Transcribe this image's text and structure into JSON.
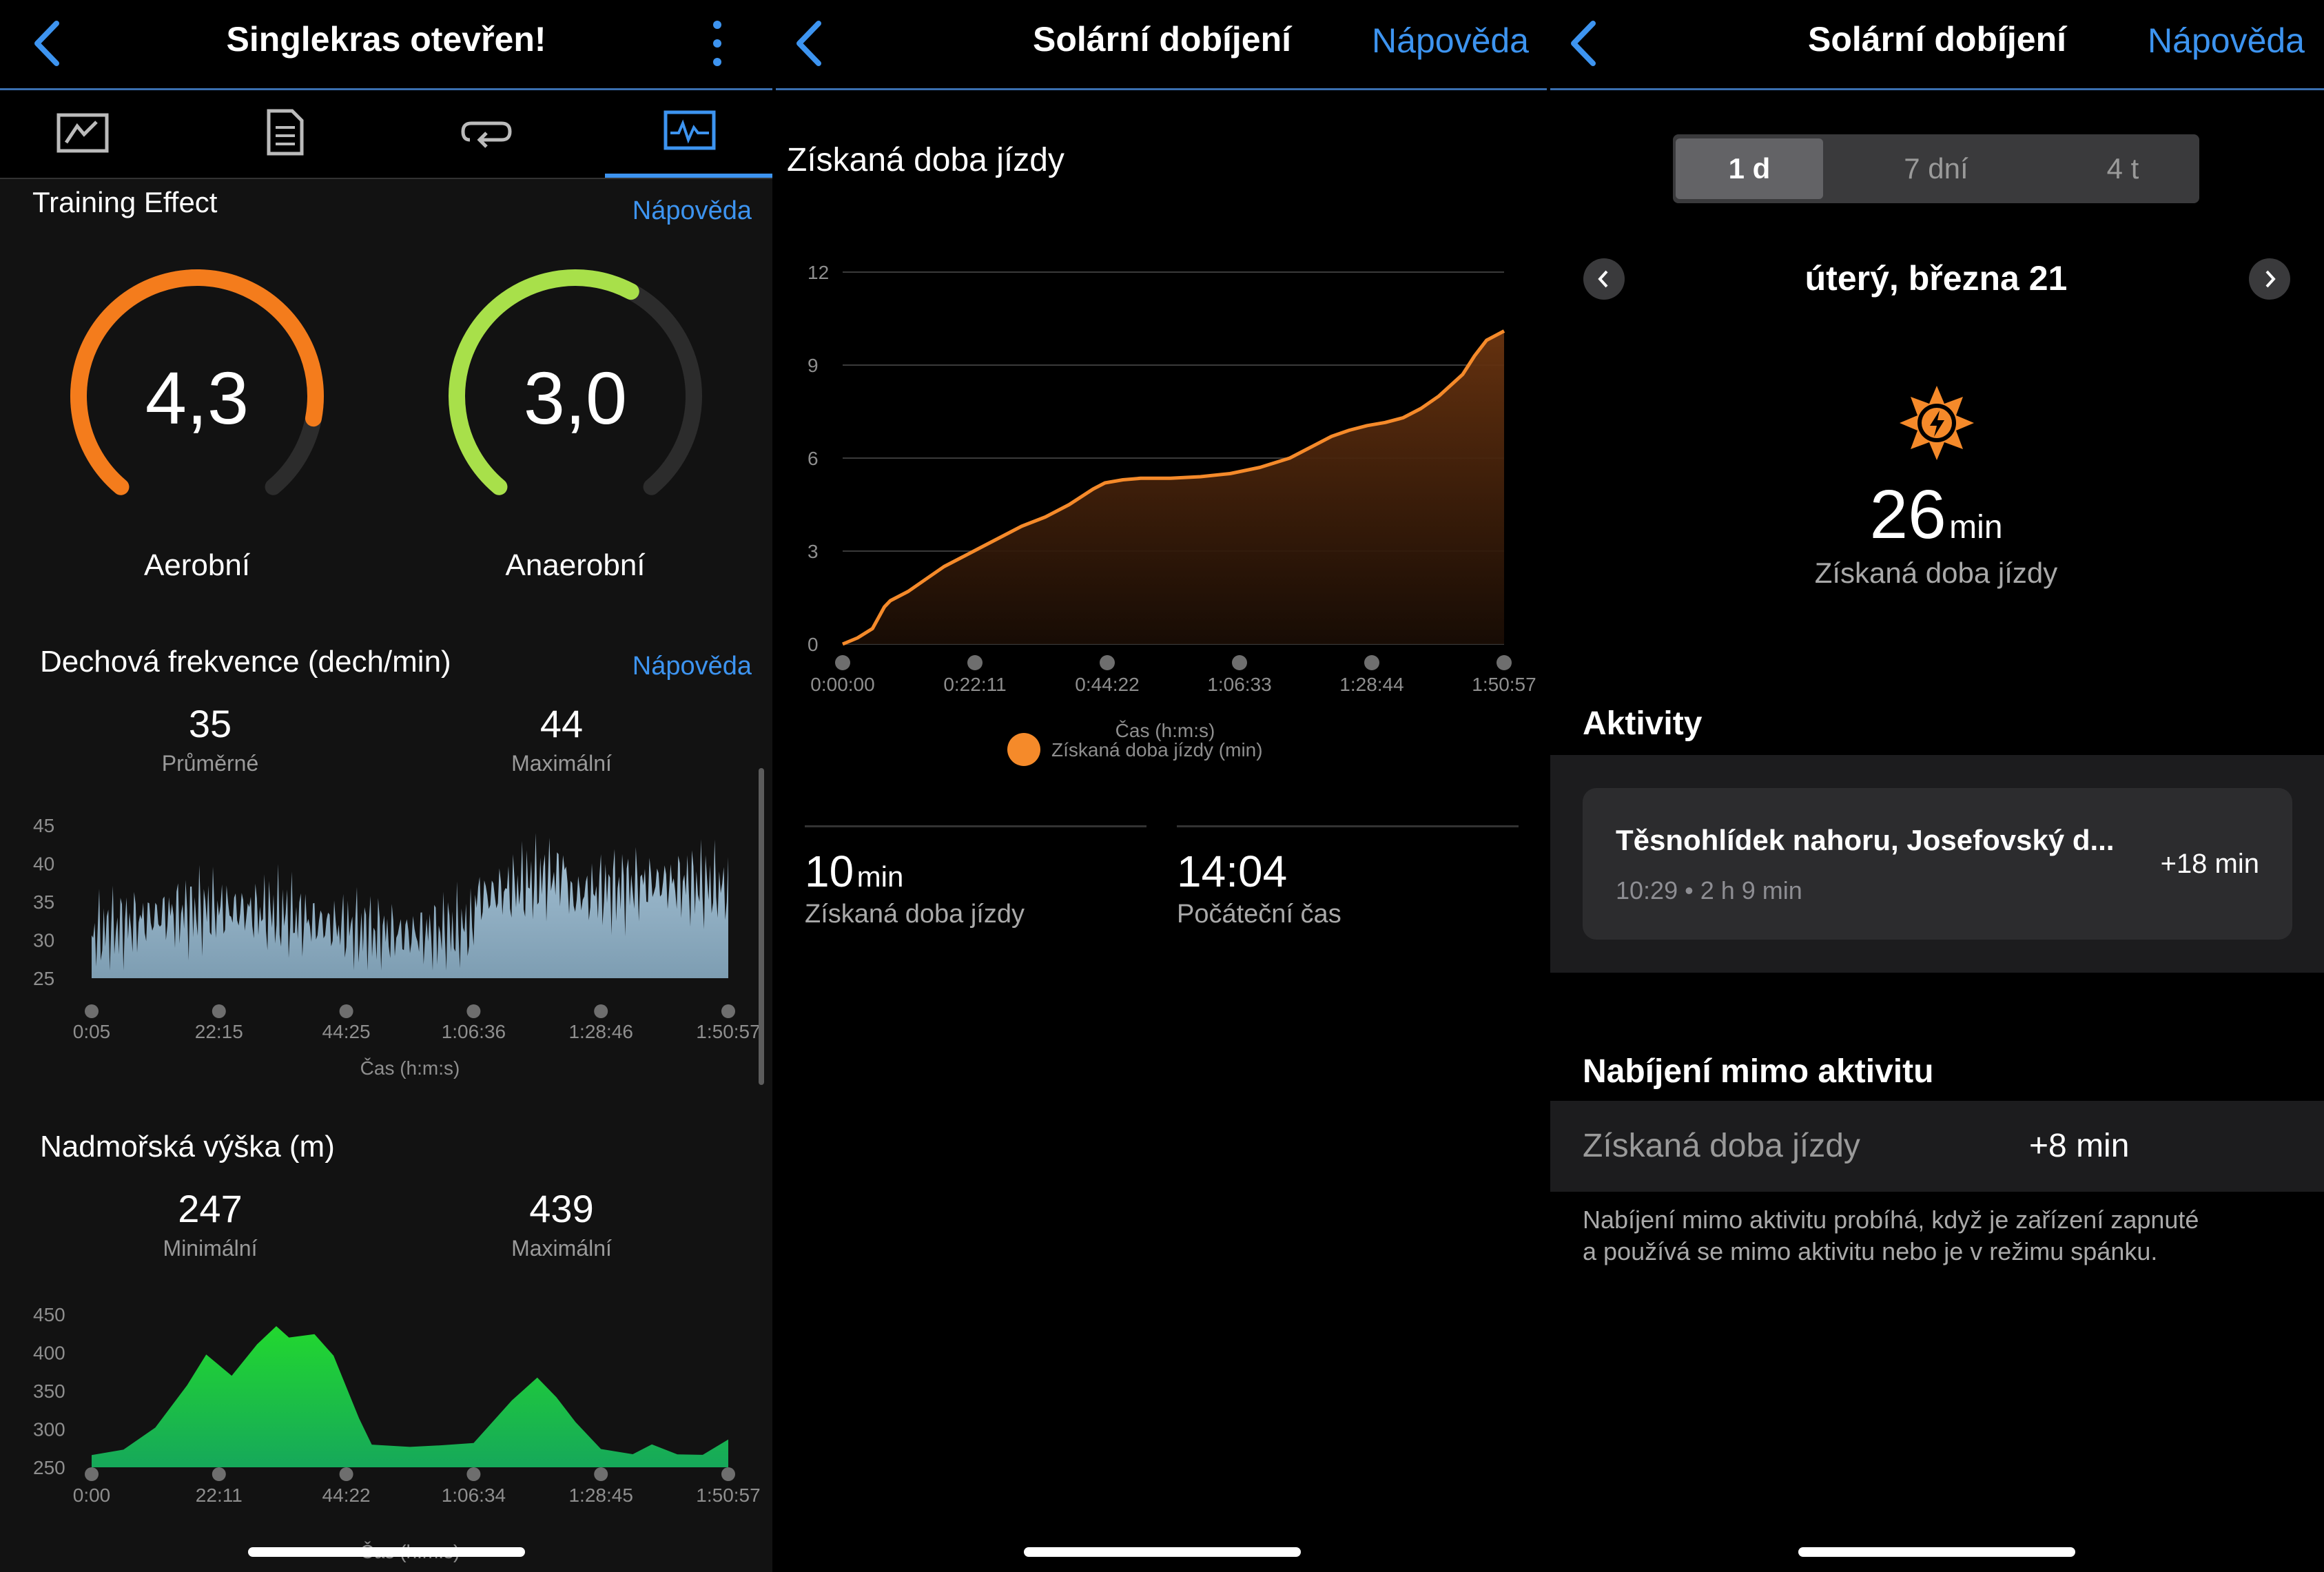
{
  "panel1": {
    "title": "Singlekras otevřen!",
    "tabs": [
      "summary-tab",
      "details-tab",
      "laps-tab",
      "charts-tab"
    ],
    "training_effect": {
      "heading": "Training Effect",
      "help": "Nápověda",
      "aerobic": {
        "value": "4,3",
        "label": "Aerobní",
        "fraction": 0.86,
        "color": "#f47c1c"
      },
      "anaerobic": {
        "value": "3,0",
        "label": "Anaerobní",
        "fraction": 0.6,
        "color": "#a8e04a"
      }
    },
    "respiration": {
      "heading": "Dechová frekvence (dech/min)",
      "help": "Nápověda",
      "avg_value": "35",
      "avg_label": "Průměrné",
      "max_value": "44",
      "max_label": "Maximální",
      "y_ticks": [
        "45",
        "40",
        "35",
        "30",
        "25"
      ],
      "x_ticks": [
        "0:05",
        "22:15",
        "44:25",
        "1:06:36",
        "1:28:46",
        "1:50:57"
      ],
      "x_label": "Čas (h:m:s)"
    },
    "elevation": {
      "heading": "Nadmořská výška (m)",
      "min_value": "247",
      "min_label": "Minimální",
      "max_value": "439",
      "max_label": "Maximální",
      "y_ticks": [
        "450",
        "400",
        "350",
        "300",
        "250"
      ],
      "x_ticks": [
        "0:00",
        "22:11",
        "44:22",
        "1:06:34",
        "1:28:45",
        "1:50:57"
      ],
      "x_label": "Čas (h:m:s)"
    }
  },
  "panel2": {
    "title": "Solární dobíjení",
    "help": "Nápověda",
    "chart_title": "Získaná doba jízdy",
    "summary": [
      {
        "value": "10",
        "unit": "min",
        "label": "Získaná doba jízdy"
      },
      {
        "value": "14:04",
        "unit": "",
        "label": "Počáteční čas"
      }
    ]
  },
  "chart_data": {
    "type": "area",
    "title": "Získaná doba jízdy",
    "xlabel": "Čas (h:m:s)",
    "ylabel": "",
    "x_ticks": [
      "0:00:00",
      "0:22:11",
      "0:44:22",
      "1:06:33",
      "1:28:44",
      "1:50:57"
    ],
    "y_ticks": [
      0,
      3,
      6,
      9,
      12
    ],
    "ylim": [
      0,
      12
    ],
    "series": [
      {
        "name": "Získaná doba jízdy (min)",
        "color": "#f58a2a",
        "x_minutes": [
          0,
          2.5,
          5,
          7,
          8,
          11,
          14,
          17,
          20,
          23,
          26,
          30,
          34,
          38,
          42,
          44,
          47,
          50,
          55,
          60,
          65,
          70,
          75,
          78,
          82,
          85,
          88,
          91,
          94,
          97,
          100,
          104,
          106,
          108,
          110.95
        ],
        "values": [
          0,
          0.2,
          0.5,
          1.2,
          1.4,
          1.7,
          2.1,
          2.5,
          2.8,
          3.1,
          3.4,
          3.8,
          4.1,
          4.5,
          5.0,
          5.2,
          5.3,
          5.35,
          5.35,
          5.4,
          5.5,
          5.7,
          6.0,
          6.3,
          6.7,
          6.9,
          7.05,
          7.15,
          7.3,
          7.6,
          8.0,
          8.7,
          9.3,
          9.8,
          10.1
        ]
      }
    ],
    "legend": "bottom",
    "grid": true
  },
  "panel3": {
    "title": "Solární dobíjení",
    "help": "Nápověda",
    "segments": [
      "1 d",
      "7 dní",
      "4 t"
    ],
    "date": "úterý, března 21",
    "total_value": "26",
    "total_unit": "min",
    "total_label": "Získaná doba jízdy",
    "activities_heading": "Aktivity",
    "activity": {
      "name": "Těsnohlídek nahoru, Josefovský d...",
      "meta": "10:29 • 2 h 9 min",
      "gain": "+18 min"
    },
    "offactivity_heading": "Nabíjení mimo aktivitu",
    "offactivity_label": "Získaná doba jízdy",
    "offactivity_value": "+8 min",
    "note_line1": "Nabíjení mimo aktivitu probíhá, když je zařízení zapnuté",
    "note_line2": "a používá se mimo aktivitu nebo je v režimu spánku."
  }
}
